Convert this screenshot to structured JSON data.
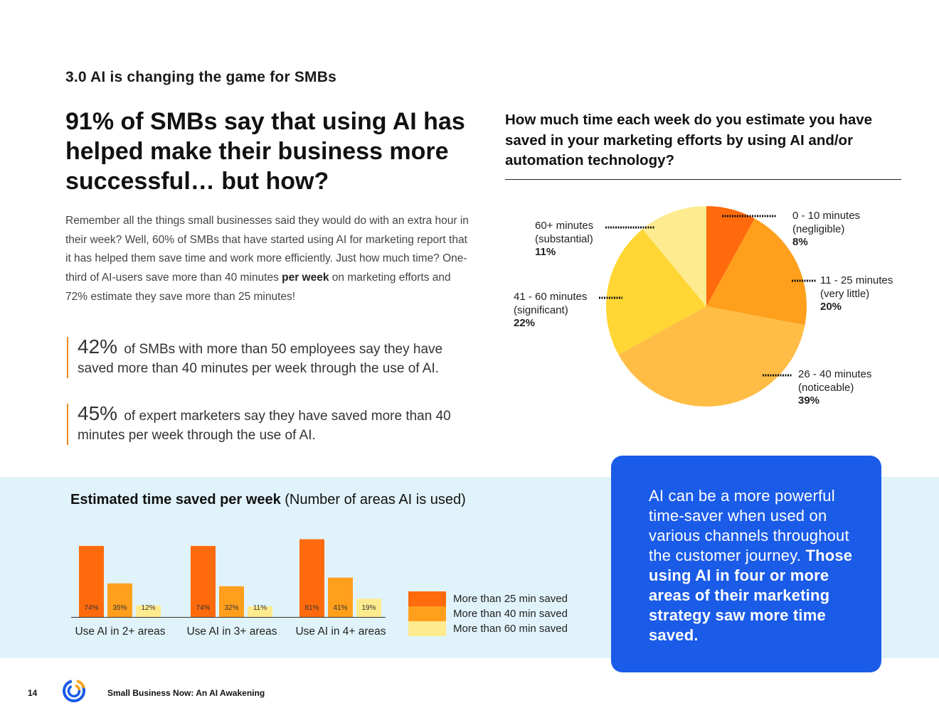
{
  "section_label": "3.0 AI is changing the game for SMBs",
  "headline": "91% of SMBs say that using AI has helped make their business more successful… but how?",
  "body": {
    "before_bold": "Remember all the things small businesses said they would do with an extra hour in their week? Well, 60% of SMBs that have started using AI for marketing report that it has helped them save time and work more efficiently. Just how much time? One-third of AI-users save more than 40 minutes ",
    "bold": "per week",
    "after_bold": " on marketing efforts and 72% estimate they save more than 25 minutes!"
  },
  "stats": [
    {
      "value": "42%",
      "text": "of SMBs with more than 50 employees say they have saved more than 40 minutes per week through the use of AI."
    },
    {
      "value": "45%",
      "text": "of expert marketers say they have saved more than 40 minutes per week through the use of AI."
    }
  ],
  "pie_question": "How much time each week do you estimate you have saved in your marketing efforts by using AI and/or automation technology?",
  "bar_title": {
    "bold": "Estimated time saved per week",
    "normal": "(Number of areas AI is used)"
  },
  "legend": [
    {
      "label": "More than 25 min saved",
      "color": "#ff6a0d"
    },
    {
      "label": "More than 40 min saved",
      "color": "#ff9f1c"
    },
    {
      "label": "More than 60 min saved",
      "color": "#ffeb8f"
    }
  ],
  "callout": {
    "normal": "AI can be a more powerful time-saver when used on various channels throughout the customer journey.",
    "bold": "Those using AI in four or more areas of their marketing strategy saw more time saved."
  },
  "footer": {
    "page_number": "14",
    "title": "Small Business Now: An AI Awakening",
    "logo_icon": "constant-contact-logo-icon"
  },
  "chart_data": [
    {
      "type": "pie",
      "title": "How much time each week do you estimate you have saved in your marketing efforts by using AI and/or automation technology?",
      "slices": [
        {
          "label": "0 - 10 minutes",
          "sublabel": "(negligible)",
          "value": 8,
          "display": "8%",
          "color": "#ff6a0d"
        },
        {
          "label": "11 - 25 minutes",
          "sublabel": "(very little)",
          "value": 20,
          "display": "20%",
          "color": "#ff9f1c"
        },
        {
          "label": "26 - 40 minutes",
          "sublabel": "(noticeable)",
          "value": 39,
          "display": "39%",
          "color": "#ffbd45"
        },
        {
          "label": "41 - 60 minutes",
          "sublabel": "(significant)",
          "value": 22,
          "display": "22%",
          "color": "#ffd633"
        },
        {
          "label": "60+ minutes",
          "sublabel": "(substantial)",
          "value": 11,
          "display": "11%",
          "color": "#ffeb8f"
        }
      ]
    },
    {
      "type": "bar",
      "title": "Estimated time saved per week (Number of areas AI is used)",
      "categories": [
        "Use AI in 2+ areas",
        "Use AI in 3+ areas",
        "Use AI in 4+ areas"
      ],
      "series": [
        {
          "name": "More than 25 min saved",
          "values": [
            74,
            74,
            81
          ],
          "labels": [
            "74%",
            "74%",
            "81%"
          ],
          "color": "#ff6a0d"
        },
        {
          "name": "More than 40 min saved",
          "values": [
            35,
            32,
            41
          ],
          "labels": [
            "35%",
            "32%",
            "41%"
          ],
          "color": "#ff9f1c"
        },
        {
          "name": "More than 60 min saved",
          "values": [
            12,
            11,
            19
          ],
          "labels": [
            "12%",
            "11%",
            "19%"
          ],
          "color": "#ffeb8f"
        }
      ]
    }
  ]
}
